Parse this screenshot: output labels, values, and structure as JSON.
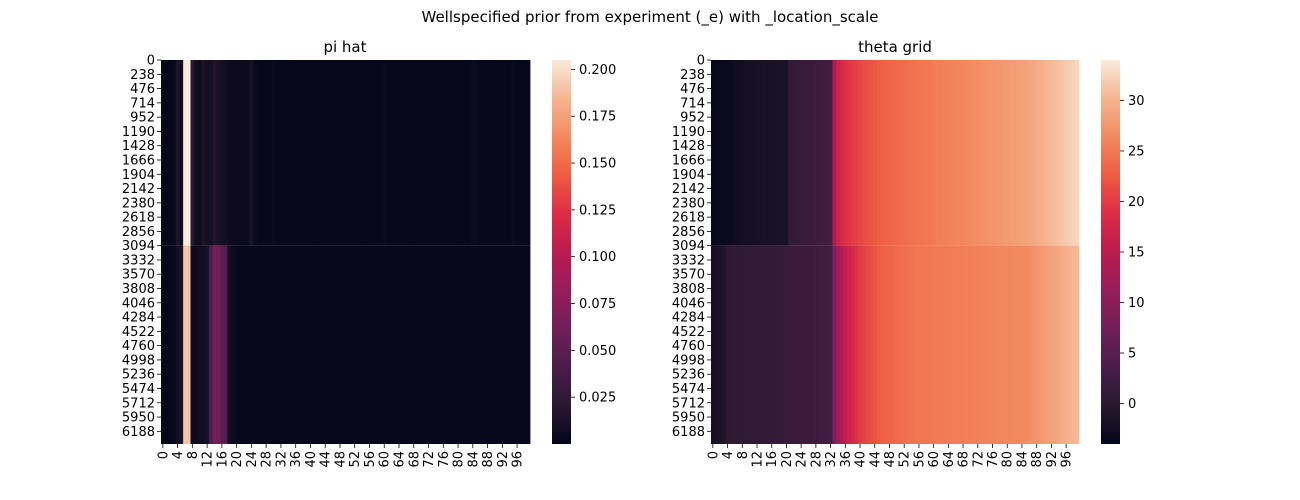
{
  "chart_data": {
    "title": "Wellspecified prior from experiment (_e) with _location_scale",
    "panels": [
      {
        "type": "heatmap",
        "title": "pi hat",
        "colormap": "rocket",
        "ylabels": [
          "0",
          "238",
          "476",
          "714",
          "952",
          "1190",
          "1428",
          "1666",
          "1904",
          "2142",
          "2380",
          "2618",
          "2856",
          "3094",
          "3332",
          "3570",
          "3808",
          "4046",
          "4284",
          "4522",
          "4760",
          "4998",
          "5236",
          "5474",
          "5712",
          "5950",
          "6188"
        ],
        "xlabels": [
          "0",
          "4",
          "8",
          "12",
          "16",
          "20",
          "24",
          "28",
          "32",
          "36",
          "40",
          "44",
          "48",
          "52",
          "56",
          "60",
          "64",
          "68",
          "72",
          "76",
          "80",
          "84",
          "88",
          "92",
          "96"
        ],
        "n_columns": 100,
        "n_rows": 6400,
        "row_split": 3094,
        "colorbar": {
          "min": 0.0,
          "max": 0.205,
          "ticks": [
            "0.025",
            "0.050",
            "0.075",
            "0.100",
            "0.125",
            "0.150",
            "0.175",
            "0.200"
          ],
          "tick_values": [
            0.025,
            0.05,
            0.075,
            0.1,
            0.125,
            0.15,
            0.175,
            0.2
          ]
        },
        "column_profiles": {
          "top": {
            "default": 0.003,
            "values": {
              "0": 0.002,
              "1": 0.002,
              "2": 0.002,
              "3": 0.004,
              "4": 0.015,
              "5": 0.008,
              "6": 0.205,
              "7": 0.205,
              "8": 0.02,
              "9": 0.008,
              "10": 0.006,
              "11": 0.014,
              "12": 0.01,
              "13": 0.01,
              "14": 0.016,
              "15": 0.012,
              "16": 0.01,
              "17": 0.008,
              "18": 0.006,
              "19": 0.006,
              "20": 0.005,
              "21": 0.005,
              "22": 0.005,
              "23": 0.005,
              "24": 0.012,
              "25": 0.005,
              "30": 0.005,
              "60": 0.004,
              "84": 0.005,
              "85": 0.005,
              "95": 0.005
            }
          },
          "bottom": {
            "default": 0.003,
            "values": {
              "0": 0.002,
              "1": 0.002,
              "2": 0.002,
              "3": 0.004,
              "4": 0.01,
              "5": 0.012,
              "6": 0.19,
              "7": 0.19,
              "8": 0.006,
              "9": 0.005,
              "10": 0.008,
              "11": 0.008,
              "12": 0.012,
              "13": 0.04,
              "14": 0.065,
              "15": 0.06,
              "16": 0.05,
              "17": 0.045,
              "18": 0.01,
              "19": 0.006,
              "20": 0.004
            }
          }
        }
      },
      {
        "type": "heatmap",
        "title": "theta grid",
        "colormap": "rocket",
        "ylabels": [
          "0",
          "238",
          "476",
          "714",
          "952",
          "1190",
          "1428",
          "1666",
          "1904",
          "2142",
          "2380",
          "2618",
          "2856",
          "3094",
          "3332",
          "3570",
          "3808",
          "4046",
          "4284",
          "4522",
          "4760",
          "4998",
          "5236",
          "5474",
          "5712",
          "5950",
          "6188"
        ],
        "xlabels": [
          "0",
          "4",
          "8",
          "12",
          "16",
          "20",
          "24",
          "28",
          "32",
          "36",
          "40",
          "44",
          "48",
          "52",
          "56",
          "60",
          "64",
          "68",
          "72",
          "76",
          "80",
          "84",
          "88",
          "92",
          "96"
        ],
        "n_columns": 100,
        "n_rows": 6400,
        "row_split": 3094,
        "colorbar": {
          "min": -4.0,
          "max": 34.0,
          "ticks": [
            "0",
            "5",
            "10",
            "15",
            "20",
            "25",
            "30"
          ],
          "tick_values": [
            0,
            5,
            10,
            15,
            20,
            25,
            30
          ]
        },
        "column_profiles": {
          "top": {
            "breakpoints": [
              [
                0,
                -3.5
              ],
              [
                5,
                -3.0
              ],
              [
                9,
                -2.0
              ],
              [
                20,
                -1.5
              ],
              [
                21,
                1.0
              ],
              [
                32,
                2.5
              ],
              [
                33,
                14.0
              ],
              [
                34,
                17.0
              ],
              [
                36,
                19.0
              ],
              [
                40,
                21.0
              ],
              [
                46,
                23.0
              ],
              [
                55,
                24.5
              ],
              [
                70,
                26.5
              ],
              [
                85,
                28.5
              ],
              [
                99,
                32.5
              ]
            ]
          },
          "bottom": {
            "breakpoints": [
              [
                0,
                -2.0
              ],
              [
                3,
                -1.0
              ],
              [
                4,
                0.3
              ],
              [
                16,
                1.0
              ],
              [
                32,
                2.5
              ],
              [
                33,
                9.0
              ],
              [
                34,
                12.0
              ],
              [
                36,
                16.0
              ],
              [
                40,
                20.0
              ],
              [
                46,
                23.0
              ],
              [
                55,
                24.8
              ],
              [
                70,
                25.5
              ],
              [
                85,
                26.5
              ],
              [
                99,
                30.5
              ]
            ]
          }
        }
      }
    ]
  }
}
